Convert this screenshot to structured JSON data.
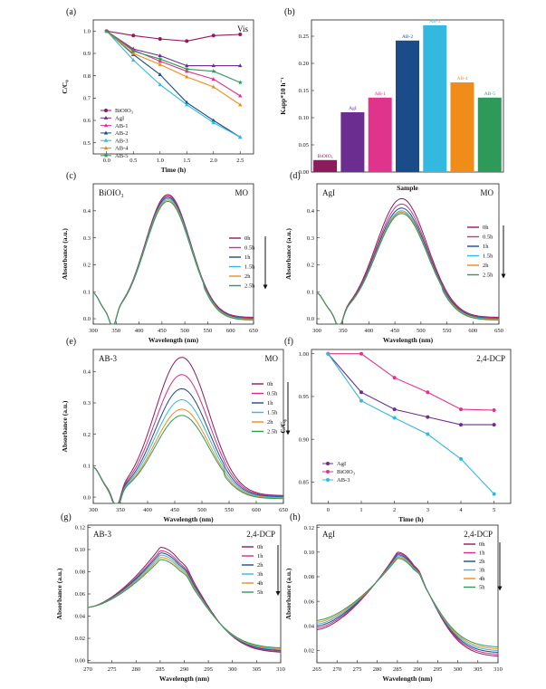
{
  "chart_data": [
    {
      "panel": "(a)",
      "type": "line",
      "condition": "Vis",
      "xlabel": "Time (h)",
      "ylabel": "C/C₀",
      "xlim": [
        -0.25,
        2.75
      ],
      "ylim": [
        0.45,
        1.05
      ],
      "xticks": [
        "0.0",
        "0.5",
        "1.0",
        "1.5",
        "2.0",
        "2.5"
      ],
      "yticks": [
        "0.5",
        "0.6",
        "0.7",
        "0.8",
        "0.9",
        "1.0"
      ],
      "x": [
        0,
        0.5,
        1.0,
        1.5,
        2.0,
        2.5
      ],
      "series": [
        {
          "name": "BiOIO₃",
          "color": "#8e1a5e",
          "marker": "circle",
          "values": [
            1.0,
            0.98,
            0.965,
            0.955,
            0.98,
            0.985
          ]
        },
        {
          "name": "AgI",
          "color": "#6b2d8f",
          "marker": "triangle",
          "values": [
            1.0,
            0.92,
            0.89,
            0.845,
            0.845,
            0.845
          ]
        },
        {
          "name": "AB-1",
          "color": "#e0348c",
          "marker": "triangle",
          "values": [
            1.0,
            0.915,
            0.865,
            0.82,
            0.785,
            0.71
          ]
        },
        {
          "name": "AB-2",
          "color": "#1a4c8a",
          "marker": "triangle",
          "values": [
            1.0,
            0.895,
            0.805,
            0.68,
            0.6,
            0.525
          ]
        },
        {
          "name": "AB-3",
          "color": "#33b8e0",
          "marker": "triangle",
          "values": [
            1.0,
            0.87,
            0.76,
            0.67,
            0.59,
            0.525
          ]
        },
        {
          "name": "AB-4",
          "color": "#f08c1a",
          "marker": "triangle",
          "values": [
            1.0,
            0.9,
            0.85,
            0.795,
            0.75,
            0.67
          ]
        },
        {
          "name": "AB-5",
          "color": "#2e9a5a",
          "marker": "star",
          "values": [
            1.0,
            0.91,
            0.875,
            0.83,
            0.82,
            0.77
          ]
        }
      ]
    },
    {
      "panel": "(b)",
      "type": "bar",
      "xlabel": "Sample",
      "ylabel": "Kapp*10 h⁻¹",
      "ylim": [
        0,
        0.28
      ],
      "yticks": [
        "0.00",
        "0.05",
        "0.10",
        "0.15",
        "0.20",
        "0.25"
      ],
      "categories": [
        "BiOIO₃",
        "AgI",
        "AB-1",
        "AB-2",
        "AB-3",
        "AB-4",
        "AB-5"
      ],
      "values": [
        0.022,
        0.11,
        0.137,
        0.242,
        0.27,
        0.165,
        0.137
      ],
      "colors": [
        "#8e1a5e",
        "#6b2d8f",
        "#e0348c",
        "#1a4c8a",
        "#33b8e0",
        "#f08c1a",
        "#2e9a5a"
      ]
    },
    {
      "panel": "(c)",
      "type": "line",
      "sample": "BiOIO₃",
      "condition": "MO",
      "xlabel": "Wavelength (nm)",
      "ylabel": "Absorbance (a.u.)",
      "xlim": [
        300,
        650
      ],
      "ylim": [
        -0.02,
        0.5
      ],
      "xticks": [
        "300",
        "350",
        "400",
        "450",
        "500",
        "550",
        "600",
        "650"
      ],
      "yticks": [
        "0.0",
        "0.1",
        "0.2",
        "0.3",
        "0.4"
      ],
      "legend": [
        "0h",
        "0.5h",
        "1h",
        "1.5h",
        "2h",
        "2.5h"
      ],
      "colors": [
        "#8e1a5e",
        "#d0307f",
        "#1a4c8a",
        "#33b8e0",
        "#f08c1a",
        "#2e9a5a"
      ],
      "peaks": [
        0.455,
        0.45,
        0.445,
        0.44,
        0.435,
        0.43
      ]
    },
    {
      "panel": "(d)",
      "type": "line",
      "sample": "AgI",
      "condition": "MO",
      "xlabel": "Wavelength (nm)",
      "ylabel": "Absorbance (a.u.)",
      "xlim": [
        300,
        650
      ],
      "ylim": [
        -0.02,
        0.5
      ],
      "xticks": [
        "300",
        "350",
        "400",
        "450",
        "500",
        "550",
        "600",
        "650"
      ],
      "yticks": [
        "0.0",
        "0.1",
        "0.2",
        "0.3",
        "0.4"
      ],
      "legend": [
        "0h",
        "0.5h",
        "1h",
        "1.5h",
        "2h",
        "2.5h"
      ],
      "colors": [
        "#8e1a5e",
        "#d0307f",
        "#1a4c8a",
        "#33b8e0",
        "#f08c1a",
        "#2e9a5a"
      ],
      "peaks": [
        0.44,
        0.42,
        0.405,
        0.395,
        0.39,
        0.385
      ]
    },
    {
      "panel": "(e)",
      "type": "line",
      "sample": "AB-3",
      "condition": "MO",
      "xlabel": "Wavelength (nm)",
      "ylabel": "Absorbance (a.u.)",
      "xlim": [
        300,
        650
      ],
      "ylim": [
        -0.02,
        0.47
      ],
      "xticks": [
        "300",
        "350",
        "400",
        "450",
        "500",
        "550",
        "600",
        "650"
      ],
      "yticks": [
        "0.0",
        "0.1",
        "0.2",
        "0.3",
        "0.4"
      ],
      "legend": [
        "0h",
        "0.5h",
        "1h",
        "1.5h",
        "2h",
        "2.5h"
      ],
      "colors": [
        "#8e1a5e",
        "#d0307f",
        "#1a4c8a",
        "#33b8e0",
        "#f08c1a",
        "#2e9a5a"
      ],
      "peaks": [
        0.44,
        0.385,
        0.34,
        0.305,
        0.275,
        0.255
      ]
    },
    {
      "panel": "(f)",
      "type": "line",
      "condition": "2,4-DCP",
      "xlabel": "Time (h)",
      "ylabel": "C/C₀",
      "xlim": [
        -0.5,
        5.5
      ],
      "ylim": [
        0.825,
        1.005
      ],
      "xticks": [
        "0",
        "1",
        "2",
        "3",
        "4",
        "5"
      ],
      "yticks": [
        "0.85",
        "0.90",
        "0.95",
        "1.00"
      ],
      "x": [
        0,
        1,
        2,
        3,
        4,
        5
      ],
      "series": [
        {
          "name": "AgI",
          "color": "#6b2d8f",
          "marker": "circle",
          "values": [
            1.0,
            0.955,
            0.935,
            0.926,
            0.917,
            0.917
          ]
        },
        {
          "name": "BiOIO₃",
          "color": "#e0348c",
          "marker": "circle",
          "values": [
            1.0,
            1.0,
            0.972,
            0.955,
            0.935,
            0.934
          ]
        },
        {
          "name": "AB-3",
          "color": "#33b8e0",
          "marker": "circle",
          "values": [
            1.0,
            0.945,
            0.925,
            0.906,
            0.877,
            0.836
          ]
        }
      ]
    },
    {
      "panel": "(g)",
      "type": "line",
      "sample": "AB-3",
      "condition": "2,4-DCP",
      "xlabel": "Wavelength (nm)",
      "ylabel": "Absorbance (a.u.)",
      "xlim": [
        270,
        310
      ],
      "ylim": [
        -0.002,
        0.122
      ],
      "xticks": [
        "270",
        "275",
        "280",
        "285",
        "290",
        "295",
        "300",
        "305",
        "310"
      ],
      "yticks": [
        "0.00",
        "0.02",
        "0.04",
        "0.06",
        "0.08",
        "0.10",
        "0.12"
      ],
      "legend": [
        "0h",
        "1h",
        "2h",
        "3h",
        "4h",
        "5h"
      ],
      "colors": [
        "#8e1a5e",
        "#d0307f",
        "#1a4c8a",
        "#33b8e0",
        "#f08c1a",
        "#2e9a5a"
      ],
      "peaks": [
        0.102,
        0.099,
        0.097,
        0.095,
        0.093,
        0.091
      ]
    },
    {
      "panel": "(h)",
      "type": "line",
      "sample": "AgI",
      "condition": "2,4-DCP",
      "xlabel": "Wavelength (nm)",
      "ylabel": "Absorbance (a.u.)",
      "xlim": [
        265,
        310
      ],
      "ylim": [
        0.01,
        0.122
      ],
      "xticks": [
        "265",
        "270",
        "275",
        "280",
        "285",
        "290",
        "295",
        "300",
        "305",
        "310"
      ],
      "yticks": [
        "0.02",
        "0.04",
        "0.06",
        "0.08",
        "0.10",
        "0.12"
      ],
      "legend": [
        "0h",
        "1h",
        "2h",
        "3h",
        "4h",
        "5h"
      ],
      "colors": [
        "#8e1a5e",
        "#d0307f",
        "#1a4c8a",
        "#33b8e0",
        "#f08c1a",
        "#2e9a5a"
      ],
      "peaks": [
        0.1,
        0.099,
        0.098,
        0.097,
        0.096,
        0.095
      ]
    }
  ]
}
